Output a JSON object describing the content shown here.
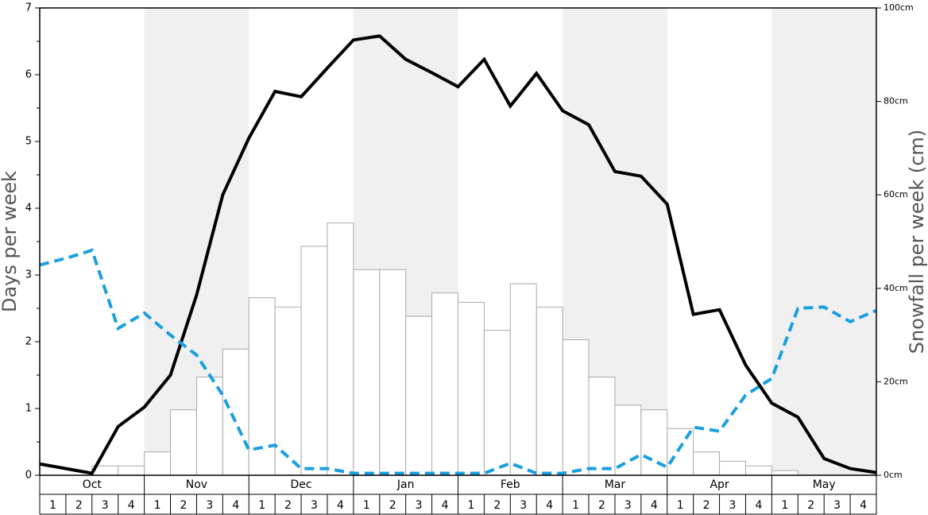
{
  "chart_data": {
    "type": "bar_line",
    "y_label": "Days per week",
    "y2_label": "Snowfall per week (cm)",
    "months": [
      "Oct",
      "Nov",
      "Dec",
      "Jan",
      "Feb",
      "Mar",
      "Apr",
      "May"
    ],
    "categories": [
      "1",
      "2",
      "3",
      "4",
      "1",
      "2",
      "3",
      "4",
      "1",
      "2",
      "3",
      "4",
      "1",
      "2",
      "3",
      "4",
      "1",
      "2",
      "3",
      "4",
      "1",
      "2",
      "3",
      "4",
      "1",
      "2",
      "3",
      "4",
      "1",
      "2",
      "3",
      "4"
    ],
    "ylim": [
      0,
      7
    ],
    "yticks": [
      0,
      1,
      2,
      3,
      4,
      5,
      6,
      7
    ],
    "yminorticks": [
      0.5,
      1.5,
      2.5,
      3.5,
      4.5,
      5.5,
      6.5
    ],
    "y2lim": [
      0,
      100
    ],
    "y2ticks": [
      {
        "value": 0,
        "label": "0cm"
      },
      {
        "value": 20,
        "label": "20cm"
      },
      {
        "value": 40,
        "label": "40cm"
      },
      {
        "value": 60,
        "label": "60cm"
      },
      {
        "value": 80,
        "label": "80cm"
      },
      {
        "value": 100,
        "label": "100cm"
      }
    ],
    "xlim": [
      0,
      32
    ],
    "x": [
      0,
      1,
      2,
      3,
      4,
      5,
      6,
      7,
      8,
      9,
      10,
      11,
      12,
      13,
      14,
      15,
      16,
      17,
      18,
      19,
      20,
      21,
      22,
      23,
      24,
      25,
      26,
      27,
      28,
      29,
      30,
      31,
      32
    ],
    "shade_color": "#f0f0f0",
    "bars": {
      "axis": "y2",
      "color": "#ffffff",
      "edge": "#aaaaaa",
      "values": [
        0,
        0,
        2,
        2,
        5,
        14,
        21,
        27,
        38,
        36,
        49,
        54,
        44,
        44,
        34,
        39,
        37,
        31,
        41,
        36,
        29,
        21,
        15,
        14,
        10,
        5,
        3,
        2,
        1,
        0,
        0,
        0
      ]
    },
    "series": [
      {
        "color": "#000000",
        "dash": false,
        "values": [
          0.17,
          0.1,
          0.03,
          0.73,
          1.02,
          1.5,
          2.7,
          4.2,
          5.05,
          5.75,
          5.67,
          6.1,
          6.52,
          6.58,
          6.23,
          6.03,
          5.82,
          6.23,
          5.53,
          6.02,
          5.46,
          5.25,
          4.55,
          4.48,
          4.06,
          2.41,
          2.48,
          1.65,
          1.08,
          0.87,
          0.25,
          0.1,
          0.04
        ]
      },
      {
        "color": "#1a9fe0",
        "dash": true,
        "values": [
          3.15,
          3.25,
          3.37,
          2.2,
          2.43,
          2.1,
          1.8,
          1.2,
          0.38,
          0.45,
          0.1,
          0.1,
          0.03,
          0.03,
          0.03,
          0.03,
          0.03,
          0.03,
          0.18,
          0.03,
          0.03,
          0.1,
          0.1,
          0.31,
          0.12,
          0.72,
          0.66,
          1.2,
          1.45,
          2.5,
          2.52,
          2.3,
          2.47
        ]
      }
    ]
  }
}
